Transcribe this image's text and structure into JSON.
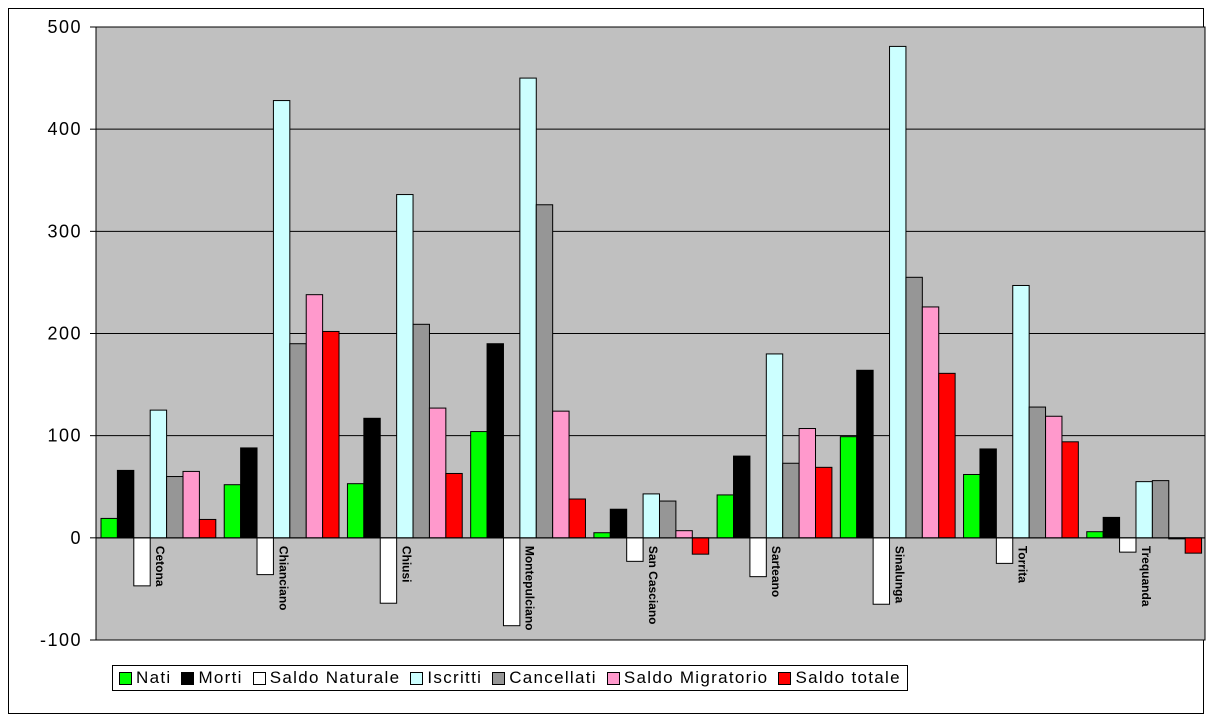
{
  "chart_data": {
    "type": "bar",
    "title": "",
    "xlabel": "",
    "ylabel": "",
    "ylim": [
      -100,
      500
    ],
    "yticks": [
      -100,
      0,
      100,
      200,
      300,
      400,
      500
    ],
    "grid": true,
    "legend_position": "bottom",
    "categories": [
      "Cetona",
      "Chianciano",
      "Chiusi",
      "Montepulciano",
      "San Casciano",
      "Sarteano",
      "Sinalunga",
      "Torrita",
      "Trequanda"
    ],
    "series": [
      {
        "name": "Nati",
        "color": "#00ff00",
        "values": [
          19,
          52,
          53,
          104,
          5,
          42,
          99,
          62,
          6
        ]
      },
      {
        "name": "Morti",
        "color": "#000000",
        "values": [
          66,
          88,
          117,
          190,
          28,
          80,
          164,
          87,
          20
        ]
      },
      {
        "name": "Saldo Naturale",
        "color": "#ffffff",
        "values": [
          -47,
          -36,
          -64,
          -86,
          -23,
          -38,
          -65,
          -25,
          -14
        ]
      },
      {
        "name": "Iscritti",
        "color": "#ccffff",
        "values": [
          125,
          428,
          336,
          450,
          43,
          180,
          481,
          247,
          55
        ]
      },
      {
        "name": "Cancellati",
        "color": "#969696",
        "values": [
          60,
          190,
          209,
          326,
          36,
          73,
          255,
          128,
          56
        ]
      },
      {
        "name": "Saldo Migratorio",
        "color": "#ff99cc",
        "values": [
          65,
          238,
          127,
          124,
          7,
          107,
          226,
          119,
          -1
        ]
      },
      {
        "name": "Saldo totale",
        "color": "#ff0000",
        "values": [
          18,
          202,
          63,
          38,
          -16,
          69,
          161,
          94,
          -15
        ]
      }
    ]
  },
  "colors": {
    "plot_background": "#c0c0c0",
    "gridline": "#000000"
  }
}
